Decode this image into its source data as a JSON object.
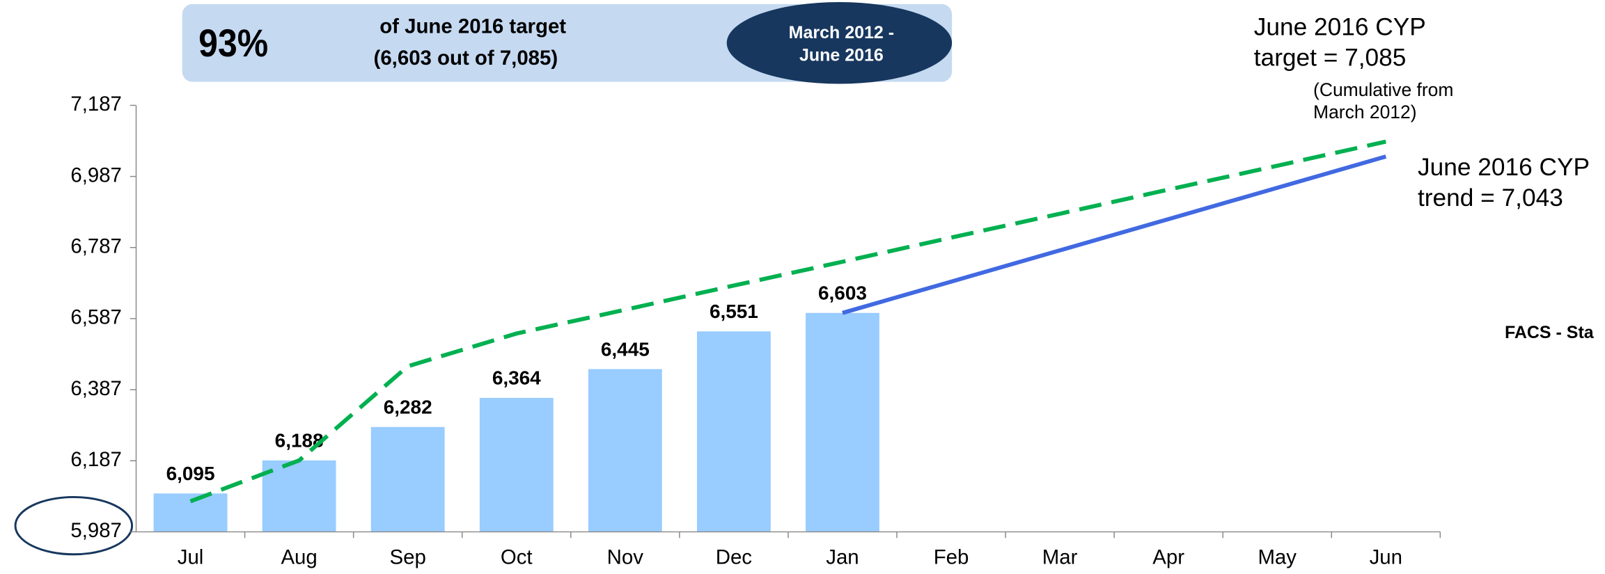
{
  "chart_data": {
    "type": "bar",
    "banner": {
      "percent": "93%",
      "line1": "of June 2016 target",
      "line2": "(6,603 out of 7,085)",
      "period_line1": "March 2012 -",
      "period_line2": "June 2016"
    },
    "annotations": [
      "June 2016 CYP",
      "target = 7,085",
      "(Cumulative from",
      "March 2012)",
      "June 2016 CYP",
      "trend = 7,043",
      "FACS - Sta"
    ],
    "categories": [
      "Jul",
      "Aug",
      "Sep",
      "Oct",
      "Nov",
      "Dec",
      "Jan",
      "Feb",
      "Mar",
      "Apr",
      "May",
      "Jun"
    ],
    "series": [
      {
        "type": "bar",
        "color": "#99ccff",
        "values": [
          6095,
          6188,
          6282,
          6364,
          6445,
          6551,
          6603,
          null,
          null,
          null,
          null,
          null
        ],
        "value_labels": [
          "6,095",
          "6,188",
          "6,282",
          "6,364",
          "6,445",
          "6,551",
          "6,603",
          null,
          null,
          null,
          null,
          null
        ]
      },
      {
        "type": "line",
        "color": "#00b050",
        "dashed": true,
        "values": [
          6073,
          6188,
          6453,
          6545,
          6612,
          6680,
          6747,
          6815,
          6882,
          6950,
          7017,
          7085
        ]
      },
      {
        "type": "line",
        "color": "#4169e1",
        "dashed": false,
        "values": [
          null,
          null,
          null,
          null,
          null,
          null,
          6603,
          6691,
          6779,
          6867,
          6955,
          7043
        ]
      }
    ],
    "ylim": [
      5987,
      7187
    ],
    "yticks": [
      {
        "value": 5987,
        "label": "5,987"
      },
      {
        "value": 6187,
        "label": "6,187"
      },
      {
        "value": 6387,
        "label": "6,387"
      },
      {
        "value": 6587,
        "label": "6,587"
      },
      {
        "value": 6787,
        "label": "6,787"
      },
      {
        "value": 6987,
        "label": "6,987"
      },
      {
        "value": 7187,
        "label": "7,187"
      }
    ]
  }
}
